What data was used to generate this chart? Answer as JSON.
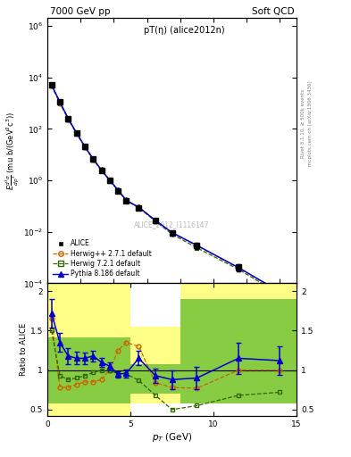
{
  "title_left": "7000 GeV pp",
  "title_right": "Soft QCD",
  "plot_label": "pT(η) (alice2012n)",
  "watermark": "ALICE_2012_I1116147",
  "right_label": "mcplots.cern.ch [arXiv:1306.3436]",
  "right_label2": "Rivet 3.1.10, ≥ 500k events",
  "xlabel": "p_{T} (GeV)",
  "ylabel": "E\\frac{d^3\\sigma}{dp^3} (mu b/(GeV^2c^3))",
  "ratio_ylabel": "Ratio to ALICE",
  "alice_x": [
    0.25,
    0.75,
    1.25,
    1.75,
    2.25,
    2.75,
    3.25,
    3.75,
    4.25,
    4.75,
    5.5,
    6.5,
    7.5,
    9.0,
    11.5,
    14.0
  ],
  "alice_y": [
    5000,
    1100,
    260,
    70,
    21,
    6.8,
    2.5,
    1.0,
    0.4,
    0.16,
    0.085,
    0.028,
    0.009,
    0.003,
    0.00042,
    4.8e-05
  ],
  "alice_yerr": [
    400,
    90,
    20,
    6,
    1.8,
    0.6,
    0.22,
    0.09,
    0.038,
    0.015,
    0.012,
    0.005,
    0.0018,
    0.0009,
    0.00012,
    1.8e-05
  ],
  "herwig_x": [
    0.25,
    0.75,
    1.25,
    1.75,
    2.25,
    2.75,
    3.25,
    3.75,
    4.25,
    4.75,
    5.5,
    6.5,
    7.5,
    9.0,
    11.5,
    14.0
  ],
  "herwig_y": [
    4900,
    990,
    238,
    67,
    20,
    6.5,
    2.45,
    1.02,
    0.42,
    0.17,
    0.092,
    0.028,
    0.0093,
    0.0029,
    0.0004,
    4.6e-05
  ],
  "herwig2_x": [
    0.25,
    0.75,
    1.25,
    1.75,
    2.25,
    2.75,
    3.25,
    3.75,
    4.25,
    4.75,
    5.5,
    6.5,
    7.5,
    9.0,
    11.5,
    14.0
  ],
  "herwig2_y": [
    5100,
    1100,
    255,
    70,
    21,
    6.9,
    2.55,
    1.01,
    0.41,
    0.165,
    0.087,
    0.026,
    0.0082,
    0.0024,
    0.00035,
    3.8e-05
  ],
  "pythia_x": [
    0.25,
    0.75,
    1.25,
    1.75,
    2.25,
    2.75,
    3.25,
    3.75,
    4.25,
    4.75,
    5.5,
    6.5,
    7.5,
    9.0,
    11.5,
    14.0
  ],
  "pythia_y": [
    5100,
    1120,
    258,
    70,
    21,
    6.9,
    2.55,
    1.02,
    0.42,
    0.168,
    0.09,
    0.028,
    0.0094,
    0.003,
    0.00041,
    4.7e-05
  ],
  "ratio_herwig_x": [
    0.25,
    0.75,
    1.25,
    1.75,
    2.25,
    2.75,
    3.25,
    3.75,
    4.25,
    4.75,
    5.5,
    6.5,
    7.5,
    9.0,
    11.5,
    14.0
  ],
  "ratio_herwig_y": [
    1.65,
    0.78,
    0.78,
    0.82,
    0.85,
    0.85,
    0.88,
    1.0,
    1.25,
    1.35,
    1.3,
    0.84,
    0.78,
    0.77,
    1.0,
    1.0
  ],
  "ratio_herwig2_x": [
    0.25,
    0.75,
    1.25,
    1.75,
    2.25,
    2.75,
    3.25,
    3.75,
    4.25,
    4.75,
    5.5,
    6.5,
    7.5,
    9.0,
    11.5,
    14.0
  ],
  "ratio_herwig2_y": [
    1.5,
    0.93,
    0.88,
    0.9,
    0.93,
    0.97,
    1.0,
    1.0,
    0.95,
    0.95,
    0.87,
    0.68,
    0.5,
    0.55,
    0.68,
    0.72
  ],
  "ratio_pythia_x": [
    0.25,
    0.75,
    1.25,
    1.75,
    2.25,
    2.75,
    3.25,
    3.75,
    4.25,
    4.75,
    5.5,
    6.5,
    7.5,
    9.0,
    11.5,
    14.0
  ],
  "ratio_pythia_y": [
    1.72,
    1.35,
    1.18,
    1.15,
    1.15,
    1.18,
    1.1,
    1.05,
    0.95,
    0.96,
    1.15,
    0.93,
    0.88,
    0.9,
    1.15,
    1.12
  ],
  "ratio_pythia_yerr": [
    0.18,
    0.12,
    0.1,
    0.08,
    0.07,
    0.07,
    0.06,
    0.05,
    0.04,
    0.05,
    0.09,
    0.09,
    0.12,
    0.14,
    0.2,
    0.18
  ],
  "band_yellow_x": [
    0.0,
    5.0,
    5.0,
    8.0,
    8.0,
    15.0
  ],
  "band_yellow_lo": [
    0.42,
    0.42,
    0.58,
    0.58,
    1.65,
    1.65
  ],
  "band_yellow_hi": [
    2.1,
    2.1,
    1.55,
    1.55,
    2.1,
    2.1
  ],
  "band_green_x": [
    0.0,
    5.0,
    5.0,
    8.0,
    8.0,
    15.0
  ],
  "band_green_lo": [
    0.58,
    0.58,
    0.7,
    0.7,
    0.58,
    0.58
  ],
  "band_green_hi": [
    1.42,
    1.42,
    1.08,
    1.08,
    1.9,
    1.9
  ],
  "xlim_main": [
    0,
    15
  ],
  "ylim_main": [
    0.0001,
    2000000.0
  ],
  "xlim_ratio": [
    0,
    15
  ],
  "ylim_ratio": [
    0.42,
    2.1
  ],
  "yticks_ratio": [
    0.5,
    1.0,
    1.5,
    2.0
  ],
  "ytick_labels_ratio": [
    "0.5",
    "1",
    "1.5",
    "2"
  ],
  "color_alice": "#000000",
  "color_herwig": "#cc6600",
  "color_herwig2": "#336600",
  "color_pythia": "#0000cc",
  "color_band_yellow": "#ffff88",
  "color_band_green": "#88cc44"
}
